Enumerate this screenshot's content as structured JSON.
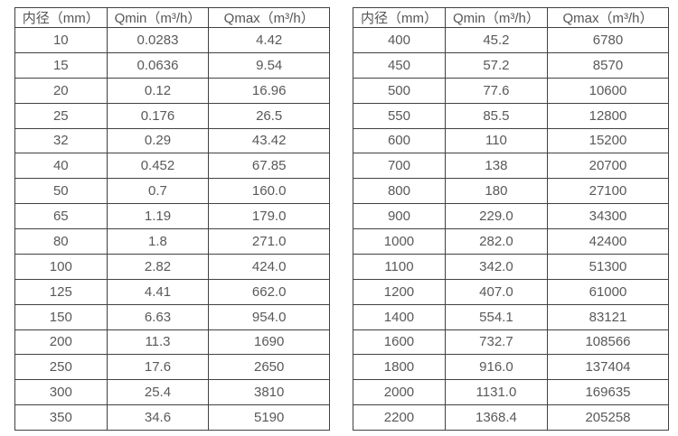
{
  "tables": [
    {
      "name": "flow-spec-small-diameters",
      "headers": [
        "内径（mm）",
        "Qmin（m³/h）",
        "Qmax（m³/h）"
      ],
      "rows": [
        [
          "10",
          "0.0283",
          "4.42"
        ],
        [
          "15",
          "0.0636",
          "9.54"
        ],
        [
          "20",
          "0.12",
          "16.96"
        ],
        [
          "25",
          "0.176",
          "26.5"
        ],
        [
          "32",
          "0.29",
          "43.42"
        ],
        [
          "40",
          "0.452",
          "67.85"
        ],
        [
          "50",
          "0.7",
          "160.0"
        ],
        [
          "65",
          "1.19",
          "179.0"
        ],
        [
          "80",
          "1.8",
          "271.0"
        ],
        [
          "100",
          "2.82",
          "424.0"
        ],
        [
          "125",
          "4.41",
          "662.0"
        ],
        [
          "150",
          "6.63",
          "954.0"
        ],
        [
          "200",
          "11.3",
          "1690"
        ],
        [
          "250",
          "17.6",
          "2650"
        ],
        [
          "300",
          "25.4",
          "3810"
        ],
        [
          "350",
          "34.6",
          "5190"
        ]
      ]
    },
    {
      "name": "flow-spec-large-diameters",
      "headers": [
        "内径（mm）",
        "Qmin（m³/h）",
        "Qmax（m³/h）"
      ],
      "rows": [
        [
          "400",
          "45.2",
          "6780"
        ],
        [
          "450",
          "57.2",
          "8570"
        ],
        [
          "500",
          "77.6",
          "10600"
        ],
        [
          "550",
          "85.5",
          "12800"
        ],
        [
          "600",
          "110",
          "15200"
        ],
        [
          "700",
          "138",
          "20700"
        ],
        [
          "800",
          "180",
          "27100"
        ],
        [
          "900",
          "229.0",
          "34300"
        ],
        [
          "1000",
          "282.0",
          "42400"
        ],
        [
          "1100",
          "342.0",
          "51300"
        ],
        [
          "1200",
          "407.0",
          "61000"
        ],
        [
          "1400",
          "554.1",
          "83121"
        ],
        [
          "1600",
          "732.7",
          "108566"
        ],
        [
          "1800",
          "916.0",
          "137404"
        ],
        [
          "2000",
          "1131.0",
          "169635"
        ],
        [
          "2200",
          "1368.4",
          "205258"
        ]
      ]
    }
  ],
  "colors": {
    "border": "#414141",
    "text": "#595959",
    "background": "#ffffff"
  }
}
